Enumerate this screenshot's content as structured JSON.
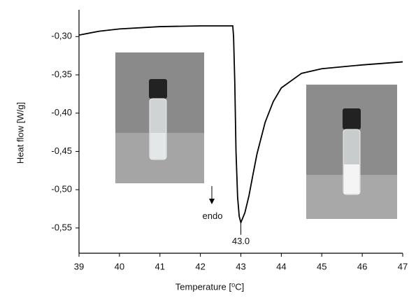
{
  "chart_data": {
    "type": "line",
    "x_label": "Temperature [⁰C]",
    "y_label": "Heat flow [W/g]",
    "xlim": [
      39,
      47
    ],
    "xticks": [
      39,
      40,
      41,
      42,
      43,
      44,
      45,
      46,
      47
    ],
    "ylim": [
      -0.583,
      -0.265
    ],
    "yticks": [
      {
        "value": -0.3,
        "label": "-0,30"
      },
      {
        "value": -0.35,
        "label": "-0,35"
      },
      {
        "value": -0.4,
        "label": "-0,40"
      },
      {
        "value": -0.45,
        "label": "-0,45"
      },
      {
        "value": -0.5,
        "label": "-0,50"
      },
      {
        "value": -0.55,
        "label": "-0,55"
      }
    ],
    "series": [
      {
        "color": "#000000",
        "x": [
          39,
          39.5,
          40,
          41,
          42,
          42.8,
          42.82,
          42.85,
          42.88,
          42.92,
          42.96,
          43.0,
          43.1,
          43.2,
          43.3,
          43.4,
          43.6,
          43.8,
          44,
          44.5,
          45,
          46,
          47
        ],
        "values": [
          -0.298,
          -0.293,
          -0.29,
          -0.287,
          -0.286,
          -0.286,
          -0.3,
          -0.36,
          -0.45,
          -0.51,
          -0.535,
          -0.543,
          -0.53,
          -0.508,
          -0.48,
          -0.453,
          -0.412,
          -0.385,
          -0.367,
          -0.348,
          -0.342,
          -0.337,
          -0.333
        ]
      }
    ],
    "annotations": [
      {
        "text": "endo",
        "x": 42.3,
        "y": -0.535
      },
      {
        "text": "43.0",
        "x": 43.0,
        "y": -0.568
      }
    ]
  }
}
